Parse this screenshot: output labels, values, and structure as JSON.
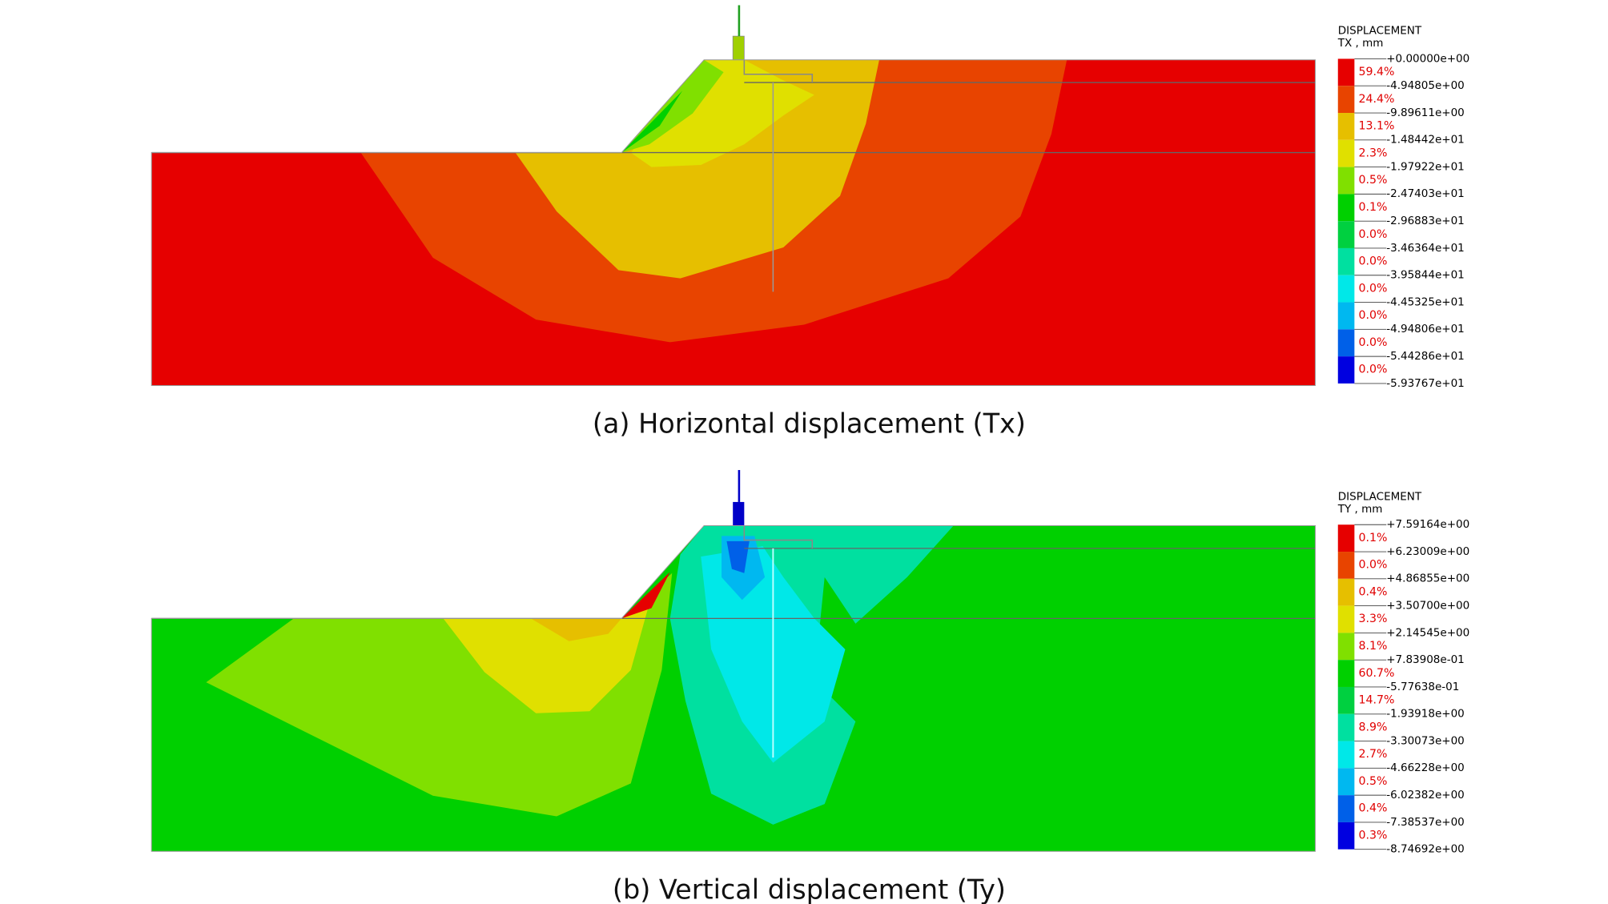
{
  "panels": [
    {
      "legend": {
        "title": "DISPLACEMENT",
        "unit": "TX , mm",
        "bounds": [
          "+0.00000e+00",
          "-4.94805e+00",
          "-9.89611e+00",
          "-1.48442e+01",
          "-1.97922e+01",
          "-2.47403e+01",
          "-2.96883e+01",
          "-3.46364e+01",
          "-3.95844e+01",
          "-4.45325e+01",
          "-4.94806e+01",
          "-5.44286e+01",
          "-5.93767e+01"
        ],
        "percents": [
          "59.4%",
          "24.4%",
          "13.1%",
          "2.3%",
          "0.5%",
          "0.1%",
          "0.0%",
          "0.0%",
          "0.0%",
          "0.0%",
          "0.0%",
          "0.0%"
        ],
        "colors": [
          "#e60000",
          "#e84400",
          "#e6bf00",
          "#e0e000",
          "#80e000",
          "#00d000",
          "#00d040",
          "#00e0a0",
          "#00e8e8",
          "#00b8f0",
          "#0060e8",
          "#0000e0"
        ]
      },
      "caption": "(a) Horizontal displacement (Tx)"
    },
    {
      "legend": {
        "title": "DISPLACEMENT",
        "unit": "TY , mm",
        "bounds": [
          "+7.59164e+00",
          "+6.23009e+00",
          "+4.86855e+00",
          "+3.50700e+00",
          "+2.14545e+00",
          "+7.83908e-01",
          "-5.77638e-01",
          "-1.93918e+00",
          "-3.30073e+00",
          "-4.66228e+00",
          "-6.02382e+00",
          "-7.38537e+00",
          "-8.74692e+00"
        ],
        "percents": [
          "0.1%",
          "0.0%",
          "0.4%",
          "3.3%",
          "8.1%",
          "60.7%",
          "14.7%",
          "8.9%",
          "2.7%",
          "0.5%",
          "0.4%",
          "0.3%"
        ],
        "colors": [
          "#e60000",
          "#e84400",
          "#e6bf00",
          "#e0e000",
          "#80e000",
          "#00d000",
          "#00d040",
          "#00e0a0",
          "#00e8e8",
          "#00b8f0",
          "#0060e8",
          "#0000e0"
        ]
      },
      "caption": "(b) Vertical displacement (Ty)"
    }
  ]
}
